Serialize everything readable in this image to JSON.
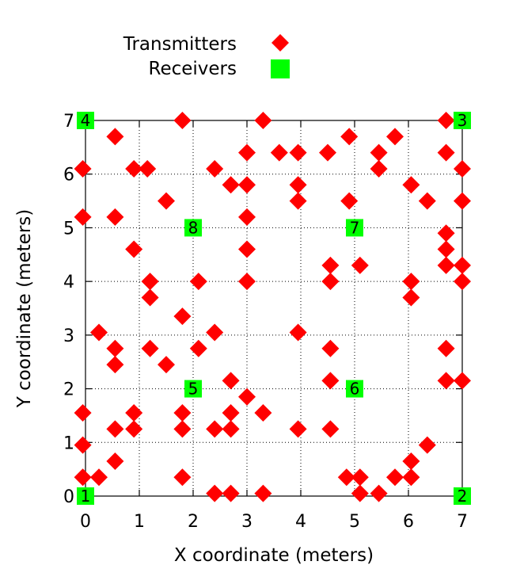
{
  "chart_data": {
    "type": "scatter",
    "xlabel": "X coordinate (meters)",
    "ylabel": "Y coordinate (meters)",
    "xlim": [
      0,
      7
    ],
    "ylim": [
      0,
      7
    ],
    "xticks": [
      0,
      1,
      2,
      3,
      4,
      5,
      6,
      7
    ],
    "yticks": [
      0,
      1,
      2,
      3,
      4,
      5,
      6,
      7
    ],
    "grid": true,
    "legend_position": "top-center",
    "colors": {
      "transmitters": "#ff0000",
      "receivers": "#00ff00"
    },
    "series": [
      {
        "name": "Transmitters",
        "marker": "diamond",
        "points": [
          [
            1.8,
            7.0
          ],
          [
            3.3,
            7.0
          ],
          [
            6.7,
            7.0
          ],
          [
            0.55,
            6.7
          ],
          [
            4.9,
            6.7
          ],
          [
            5.75,
            6.7
          ],
          [
            3.0,
            6.4
          ],
          [
            3.6,
            6.4
          ],
          [
            3.95,
            6.4
          ],
          [
            4.5,
            6.4
          ],
          [
            5.45,
            6.4
          ],
          [
            6.7,
            6.4
          ],
          [
            -0.05,
            6.1
          ],
          [
            0.9,
            6.1
          ],
          [
            1.15,
            6.1
          ],
          [
            2.4,
            6.1
          ],
          [
            5.45,
            6.1
          ],
          [
            7.0,
            6.1
          ],
          [
            2.7,
            5.8
          ],
          [
            3.0,
            5.8
          ],
          [
            3.95,
            5.8
          ],
          [
            6.05,
            5.8
          ],
          [
            1.5,
            5.5
          ],
          [
            3.95,
            5.5
          ],
          [
            4.9,
            5.5
          ],
          [
            6.35,
            5.5
          ],
          [
            7.0,
            5.5
          ],
          [
            -0.05,
            5.2
          ],
          [
            0.55,
            5.2
          ],
          [
            3.0,
            5.2
          ],
          [
            6.7,
            4.9
          ],
          [
            0.9,
            4.6
          ],
          [
            3.0,
            4.6
          ],
          [
            6.7,
            4.6
          ],
          [
            4.55,
            4.3
          ],
          [
            5.1,
            4.3
          ],
          [
            6.7,
            4.3
          ],
          [
            7.0,
            4.3
          ],
          [
            1.2,
            4.0
          ],
          [
            2.1,
            4.0
          ],
          [
            3.0,
            4.0
          ],
          [
            4.55,
            4.0
          ],
          [
            6.05,
            4.0
          ],
          [
            7.0,
            4.0
          ],
          [
            1.2,
            3.7
          ],
          [
            6.05,
            3.7
          ],
          [
            1.8,
            3.35
          ],
          [
            0.25,
            3.05
          ],
          [
            2.4,
            3.05
          ],
          [
            3.95,
            3.05
          ],
          [
            0.55,
            2.75
          ],
          [
            1.2,
            2.75
          ],
          [
            2.1,
            2.75
          ],
          [
            4.55,
            2.75
          ],
          [
            6.7,
            2.75
          ],
          [
            0.55,
            2.45
          ],
          [
            1.5,
            2.45
          ],
          [
            2.7,
            2.15
          ],
          [
            4.55,
            2.15
          ],
          [
            6.7,
            2.15
          ],
          [
            7.0,
            2.15
          ],
          [
            3.0,
            1.85
          ],
          [
            -0.05,
            1.55
          ],
          [
            0.9,
            1.55
          ],
          [
            1.8,
            1.55
          ],
          [
            2.7,
            1.55
          ],
          [
            3.3,
            1.55
          ],
          [
            0.55,
            1.25
          ],
          [
            0.9,
            1.25
          ],
          [
            1.8,
            1.25
          ],
          [
            2.4,
            1.25
          ],
          [
            2.7,
            1.25
          ],
          [
            3.95,
            1.25
          ],
          [
            4.55,
            1.25
          ],
          [
            -0.05,
            0.95
          ],
          [
            6.35,
            0.95
          ],
          [
            0.55,
            0.65
          ],
          [
            6.05,
            0.65
          ],
          [
            -0.05,
            0.35
          ],
          [
            0.25,
            0.35
          ],
          [
            1.8,
            0.35
          ],
          [
            4.85,
            0.35
          ],
          [
            5.1,
            0.35
          ],
          [
            5.75,
            0.35
          ],
          [
            6.05,
            0.35
          ],
          [
            2.4,
            0.05
          ],
          [
            2.7,
            0.05
          ],
          [
            3.3,
            0.05
          ],
          [
            5.1,
            0.05
          ],
          [
            5.45,
            0.05
          ]
        ]
      },
      {
        "name": "Receivers",
        "marker": "square",
        "points": [
          {
            "x": 0,
            "y": 0,
            "label": "1"
          },
          {
            "x": 7,
            "y": 0,
            "label": "2"
          },
          {
            "x": 7,
            "y": 7,
            "label": "3"
          },
          {
            "x": 0,
            "y": 7,
            "label": "4"
          },
          {
            "x": 2,
            "y": 2,
            "label": "5"
          },
          {
            "x": 5,
            "y": 2,
            "label": "6"
          },
          {
            "x": 5,
            "y": 5,
            "label": "7"
          },
          {
            "x": 2,
            "y": 5,
            "label": "8"
          }
        ]
      }
    ]
  }
}
